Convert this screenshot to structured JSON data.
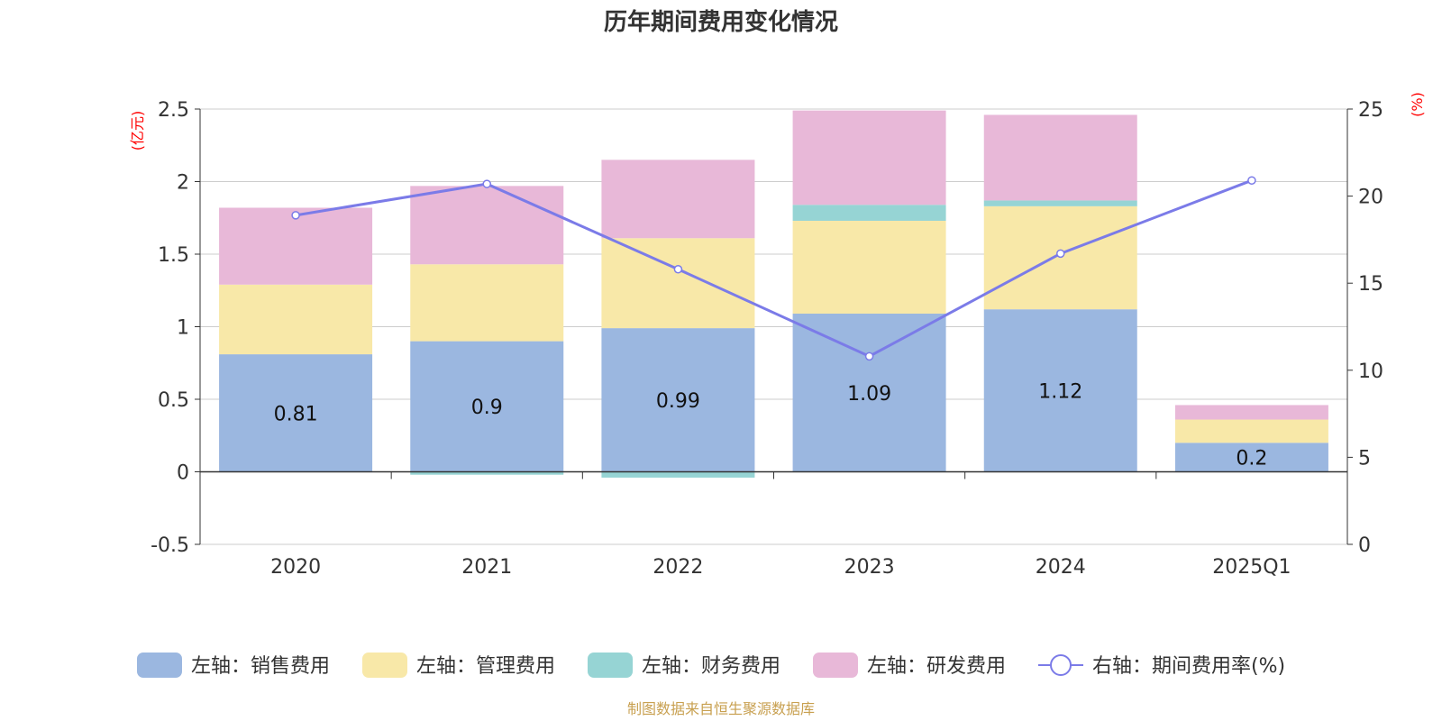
{
  "chart_data": {
    "type": "bar",
    "title": "历年期间费用变化情况",
    "categories": [
      "2020",
      "2021",
      "2022",
      "2023",
      "2024",
      "2025Q1"
    ],
    "left_axis": {
      "unit": "(亿元)",
      "ylim": [
        -0.5,
        2.5
      ],
      "ticks": [
        -0.5,
        0,
        0.5,
        1,
        1.5,
        2,
        2.5
      ],
      "tick_labels": [
        "-0.5",
        "0",
        "0.5",
        "1",
        "1.5",
        "2",
        "2.5"
      ]
    },
    "right_axis": {
      "unit": "(%)",
      "ylim": [
        0,
        25
      ],
      "ticks": [
        0,
        5,
        10,
        15,
        20,
        25
      ],
      "tick_labels": [
        "0",
        "5",
        "10",
        "15",
        "20",
        "25"
      ]
    },
    "grid": true,
    "legend_position": "bottom",
    "series": [
      {
        "name": "左轴：销售费用",
        "kind": "bar",
        "axis": "left",
        "color": "#9bb7e0",
        "values": [
          0.81,
          0.9,
          0.99,
          1.09,
          1.12,
          0.2
        ],
        "labels": [
          "0.81",
          "0.9",
          "0.99",
          "1.09",
          "1.12",
          "0.2"
        ]
      },
      {
        "name": "左轴：管理费用",
        "kind": "bar",
        "axis": "left",
        "color": "#f8e8a8",
        "values": [
          0.48,
          0.53,
          0.62,
          0.64,
          0.71,
          0.16
        ]
      },
      {
        "name": "左轴：财务费用",
        "kind": "bar",
        "axis": "left",
        "color": "#96d4d4",
        "values": [
          0.0,
          -0.02,
          -0.04,
          0.11,
          0.04,
          0.0
        ]
      },
      {
        "name": "左轴：研发费用",
        "kind": "bar",
        "axis": "left",
        "color": "#e8b8d8",
        "values": [
          0.53,
          0.54,
          0.54,
          0.65,
          0.59,
          0.1
        ]
      },
      {
        "name": "右轴：期间费用率(%)",
        "kind": "line",
        "axis": "right",
        "color": "#7b7be8",
        "values": [
          18.9,
          20.7,
          15.8,
          10.8,
          16.7,
          20.9
        ]
      }
    ],
    "source": "制图数据来自恒生聚源数据库"
  }
}
